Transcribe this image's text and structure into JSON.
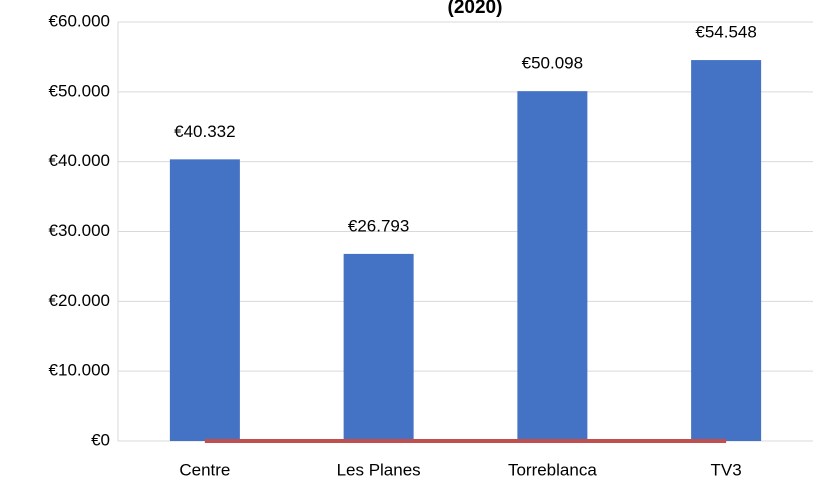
{
  "chart_data": {
    "type": "bar",
    "title": "(2020)",
    "categories": [
      "Centre",
      "Les Planes",
      "Torreblanca",
      "TV3"
    ],
    "series": [
      {
        "type": "bar",
        "color": "#4472c4",
        "values": [
          40332,
          26793,
          50098,
          54548
        ],
        "value_labels": [
          "€40.332",
          "€26.793",
          "€50.098",
          "€54.548"
        ]
      },
      {
        "type": "line",
        "color": "#c0504d",
        "values": [
          0,
          0,
          0,
          0
        ]
      }
    ],
    "ylim": [
      0,
      60000
    ],
    "yticks": [
      {
        "value": 0,
        "label": "€0"
      },
      {
        "value": 10000,
        "label": "€10.000"
      },
      {
        "value": 20000,
        "label": "€20.000"
      },
      {
        "value": 30000,
        "label": "€30.000"
      },
      {
        "value": 40000,
        "label": "€40.000"
      },
      {
        "value": 50000,
        "label": "€50.000"
      },
      {
        "value": 60000,
        "label": "€60.000"
      }
    ],
    "grid": true
  }
}
